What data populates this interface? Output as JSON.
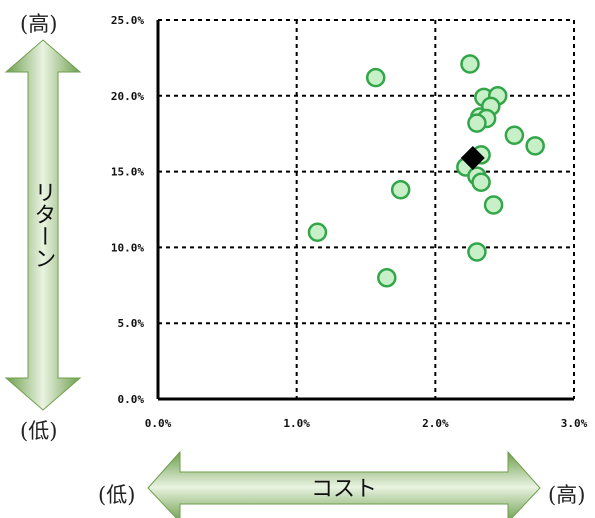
{
  "labels": {
    "y_high": "(高)",
    "y_low": "(低)",
    "x_low": "(低)",
    "x_high": "(高)"
  },
  "colors": {
    "point_fill": "#c8f0c8",
    "point_stroke": "#33a64a",
    "highlight": "#000000",
    "arrow_fill_light": "#f2f8ec",
    "arrow_fill_dark": "#7aa857",
    "grid": "#000000"
  },
  "chart_data": {
    "type": "scatter",
    "xlabel": "コスト",
    "ylabel": "リターン",
    "xlim": [
      0,
      3.0
    ],
    "ylim": [
      0,
      25.0
    ],
    "x_ticks": [
      "0.0%",
      "1.0%",
      "2.0%",
      "3.0%"
    ],
    "y_ticks": [
      "0.0%",
      "5.0%",
      "10.0%",
      "15.0%",
      "20.0%",
      "25.0%"
    ],
    "grid": true,
    "grid_style": "dashed",
    "series": [
      {
        "marker": "circle",
        "points": [
          {
            "x": 1.57,
            "y": 21.2
          },
          {
            "x": 2.25,
            "y": 22.1
          },
          {
            "x": 2.35,
            "y": 19.9
          },
          {
            "x": 2.45,
            "y": 20.0
          },
          {
            "x": 2.4,
            "y": 19.3
          },
          {
            "x": 2.32,
            "y": 18.6
          },
          {
            "x": 2.37,
            "y": 18.5
          },
          {
            "x": 2.3,
            "y": 18.2
          },
          {
            "x": 2.57,
            "y": 17.4
          },
          {
            "x": 2.72,
            "y": 16.7
          },
          {
            "x": 2.33,
            "y": 16.1
          },
          {
            "x": 2.22,
            "y": 15.3
          },
          {
            "x": 2.3,
            "y": 14.7
          },
          {
            "x": 2.33,
            "y": 14.3
          },
          {
            "x": 1.75,
            "y": 13.8
          },
          {
            "x": 2.42,
            "y": 12.8
          },
          {
            "x": 1.15,
            "y": 11.0
          },
          {
            "x": 2.3,
            "y": 9.7
          },
          {
            "x": 1.65,
            "y": 8.0
          }
        ]
      },
      {
        "marker": "diamond",
        "points": [
          {
            "x": 2.27,
            "y": 15.9
          }
        ]
      }
    ]
  }
}
